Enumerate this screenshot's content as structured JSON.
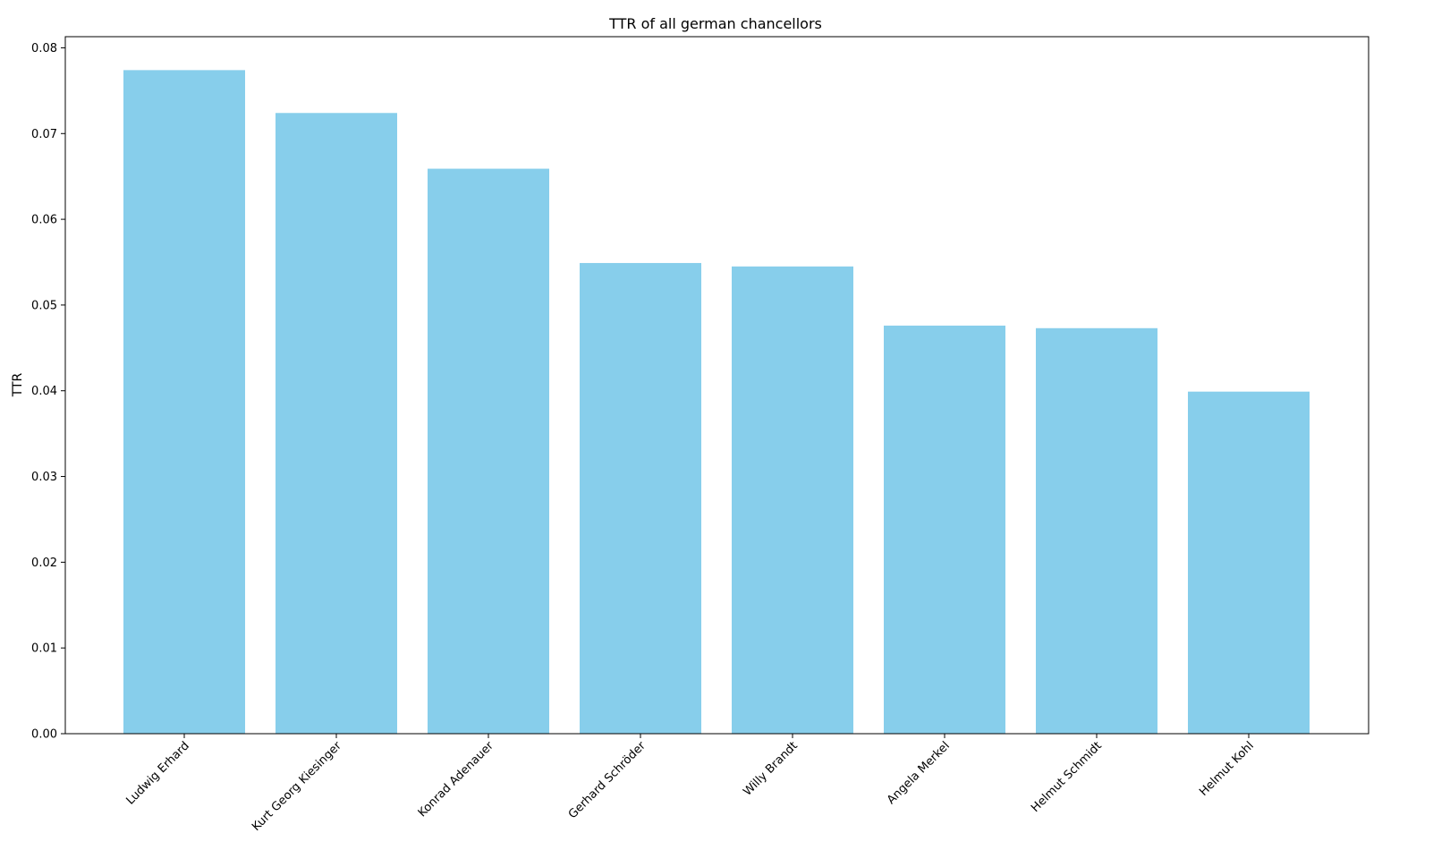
{
  "chart_data": {
    "type": "bar",
    "title": "TTR of all german chancellors",
    "xlabel": "",
    "ylabel": "TTR",
    "categories": [
      "Ludwig Erhard",
      "Kurt Georg Kiesinger",
      "Konrad Adenauer",
      "Gerhard Schröder",
      "Willy Brandt",
      "Angela Merkel",
      "Helmut Schmidt",
      "Helmut Kohl"
    ],
    "values": [
      0.0774,
      0.0724,
      0.0659,
      0.0549,
      0.0545,
      0.0476,
      0.0473,
      0.0399
    ],
    "ylim": [
      0,
      0.0813
    ],
    "yticks": [
      "0.00",
      "0.01",
      "0.02",
      "0.03",
      "0.04",
      "0.05",
      "0.06",
      "0.07",
      "0.08"
    ],
    "bar_color": "#87CEEB",
    "grid": false,
    "legend": "none"
  }
}
